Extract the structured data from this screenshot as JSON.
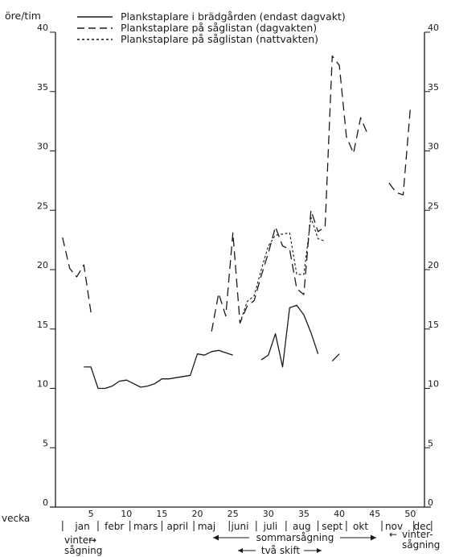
{
  "chart_data": {
    "type": "line",
    "ylabel": "öre/tim",
    "ylim": [
      0,
      40
    ],
    "yticks": [
      0,
      5,
      10,
      15,
      20,
      25,
      30,
      35,
      40
    ],
    "ytick_labels": [
      "0",
      "5",
      "10",
      "15",
      "20",
      "25",
      "30",
      "35",
      "40"
    ],
    "xlabel": "vecka",
    "xlim": [
      0,
      52
    ],
    "xticks": [
      5,
      10,
      15,
      20,
      25,
      30,
      35,
      40,
      45,
      50
    ],
    "xtick_labels": [
      "5",
      "10",
      "15",
      "20",
      "25",
      "30",
      "35",
      "40",
      "45",
      "50"
    ],
    "months": [
      {
        "label": "jan",
        "w": 3.8
      },
      {
        "label": "febr",
        "w": 8.3
      },
      {
        "label": "mars",
        "w": 12.7
      },
      {
        "label": "april",
        "w": 17.2
      },
      {
        "label": "maj",
        "w": 21.3
      },
      {
        "label": "juni",
        "w": 26.0
      },
      {
        "label": "juli",
        "w": 30.3
      },
      {
        "label": "aug",
        "w": 34.7
      },
      {
        "label": "sept",
        "w": 39.0
      },
      {
        "label": "okt",
        "w": 43.0
      },
      {
        "label": "nov",
        "w": 47.7
      },
      {
        "label": "dec",
        "w": 51.7
      }
    ],
    "month_separators": [
      1,
      6,
      10.5,
      15,
      19.5,
      24.5,
      28.3,
      32.5,
      37,
      41,
      46,
      50.5,
      53
    ],
    "annotations": {
      "winter_start": "vinter-\nsågning",
      "summer": "sommarsågning",
      "two_shifts": "två skift",
      "winter_end": "vinter-\nsågning"
    },
    "series": [
      {
        "name": "Plankstaplare i brädgården (endast dagvakt)",
        "style": "solid",
        "segments": [
          [
            [
              4,
              11.8
            ],
            [
              5,
              11.8
            ],
            [
              6,
              10
            ],
            [
              7,
              10
            ],
            [
              8,
              10.2
            ],
            [
              9,
              10.6
            ],
            [
              10,
              10.7
            ],
            [
              11,
              10.4
            ],
            [
              12,
              10.1
            ],
            [
              13,
              10.2
            ],
            [
              14,
              10.4
            ],
            [
              15,
              10.8
            ],
            [
              16,
              10.8
            ],
            [
              17,
              10.9
            ],
            [
              18,
              11
            ],
            [
              19,
              11.1
            ],
            [
              20,
              12.9
            ],
            [
              21,
              12.8
            ],
            [
              22,
              13.1
            ],
            [
              23,
              13.2
            ],
            [
              24,
              13
            ],
            [
              25,
              12.8
            ]
          ],
          [
            [
              29,
              12.4
            ],
            [
              30,
              12.8
            ],
            [
              31,
              14.6
            ],
            [
              32,
              11.8
            ],
            [
              33,
              16.8
            ],
            [
              34,
              17
            ],
            [
              35,
              16.2
            ],
            [
              36,
              14.7
            ],
            [
              37,
              12.9
            ]
          ],
          [
            [
              39,
              12.3
            ],
            [
              40,
              12.9
            ]
          ]
        ]
      },
      {
        "name": "Plankstaplare på såglistan (dagvakten)",
        "style": "dashed",
        "segments": [
          [
            [
              1,
              22.7
            ],
            [
              2,
              20.1
            ],
            [
              3,
              19.4
            ],
            [
              4,
              20.4
            ],
            [
              5,
              16.4
            ]
          ],
          [
            [
              22,
              14.8
            ],
            [
              23,
              18
            ],
            [
              24,
              16.1
            ],
            [
              25,
              23.1
            ],
            [
              26,
              15.5
            ],
            [
              27,
              16.9
            ],
            [
              28,
              17.4
            ],
            [
              29,
              19.5
            ],
            [
              30,
              21.4
            ],
            [
              31,
              23.6
            ],
            [
              32,
              22
            ],
            [
              33,
              21.7
            ],
            [
              34,
              18.4
            ],
            [
              35,
              17.9
            ],
            [
              36,
              25
            ],
            [
              37,
              23.2
            ],
            [
              38,
              23.6
            ],
            [
              39,
              38
            ],
            [
              40,
              37.2
            ],
            [
              41,
              31.2
            ],
            [
              42,
              29.8
            ],
            [
              43,
              32.8
            ],
            [
              44,
              31.4
            ]
          ],
          [
            [
              47,
              27.3
            ],
            [
              48,
              26.5
            ],
            [
              49,
              26.3
            ],
            [
              50,
              33.5
            ]
          ]
        ]
      },
      {
        "name": "Plankstaplare på såglistan (nattvakten)",
        "style": "dotted",
        "segments": [
          [
            [
              26,
              15.5
            ],
            [
              27,
              17.3
            ],
            [
              28,
              17.8
            ],
            [
              29,
              20
            ],
            [
              30,
              22
            ],
            [
              31,
              22.9
            ],
            [
              32,
              23
            ],
            [
              33,
              23.1
            ],
            [
              34,
              19.6
            ],
            [
              35,
              19.6
            ],
            [
              36,
              24.4
            ],
            [
              37,
              22.6
            ],
            [
              38,
              22.4
            ]
          ]
        ]
      }
    ]
  }
}
